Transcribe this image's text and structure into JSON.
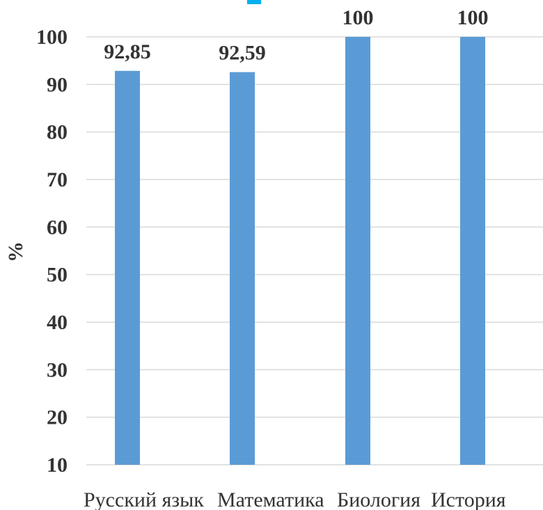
{
  "chart_data": {
    "type": "bar",
    "ylabel": "%",
    "ylim": [
      10,
      100
    ],
    "yticks": [
      10,
      20,
      30,
      40,
      50,
      60,
      70,
      80,
      90,
      100
    ],
    "categories": [
      "Русский язык",
      "Математика",
      "Биология",
      "История"
    ],
    "values": [
      92.85,
      92.59,
      100,
      100
    ],
    "data_labels": [
      "92,85",
      "92,59",
      "100",
      "100"
    ],
    "grid": true,
    "legend": "none"
  },
  "colors": {
    "bar": "#5b9bd5",
    "grid": "#d9d9d9",
    "text": "#333333",
    "title_fragment": "#00b0f0"
  }
}
